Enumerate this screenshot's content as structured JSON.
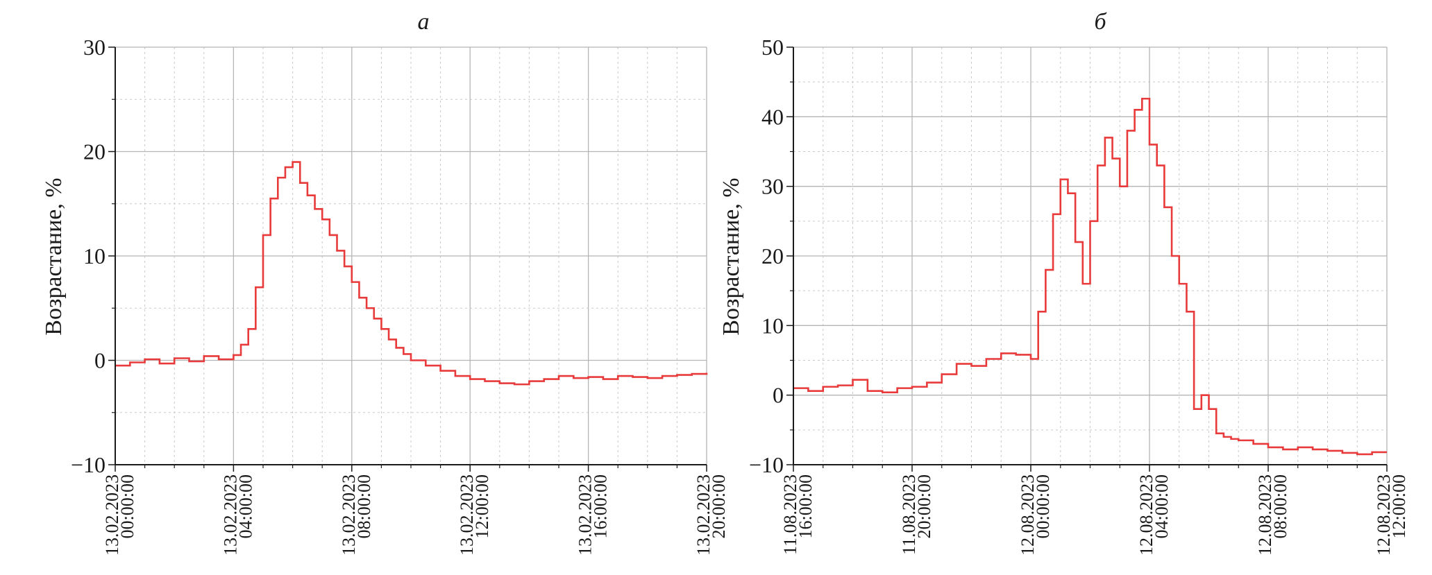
{
  "colors": {
    "series": "#e83a3a",
    "grid_major": "#b5b5b5",
    "grid_minor": "#c9c9c9",
    "axis": "#1a1a1a"
  },
  "chart_data": [
    {
      "type": "line",
      "step": true,
      "title": "а",
      "ylabel": "Возрастание, %",
      "xlabel": "",
      "ylim": [
        -10,
        30
      ],
      "yticks": [
        "30",
        "20",
        "10",
        "0",
        "−10"
      ],
      "ytick_values": [
        30,
        20,
        10,
        0,
        -10
      ],
      "xticks": [
        {
          "date": "13.02.2023",
          "time": "00:00:00"
        },
        {
          "date": "13.02.2023",
          "time": "04:00:00"
        },
        {
          "date": "13.02.2023",
          "time": "08:00:00"
        },
        {
          "date": "13.02.2023",
          "time": "12:00:00"
        },
        {
          "date": "13.02.2023",
          "time": "16:00:00"
        },
        {
          "date": "13.02.2023",
          "time": "20:00:00"
        }
      ],
      "x_unit": "hours",
      "xlim": [
        0,
        20
      ],
      "grid": true,
      "series": [
        {
          "x": [
            0,
            0.5,
            1,
            1.5,
            2,
            2.5,
            3,
            3.5,
            4,
            4.25,
            4.5,
            4.75,
            5,
            5.25,
            5.5,
            5.75,
            6,
            6.25,
            6.5,
            6.75,
            7,
            7.25,
            7.5,
            7.75,
            8,
            8.25,
            8.5,
            8.75,
            9,
            9.25,
            9.5,
            9.75,
            10,
            10.5,
            11,
            11.5,
            12,
            12.5,
            13,
            13.5,
            14,
            14.5,
            15,
            15.5,
            16,
            16.5,
            17,
            17.5,
            18,
            18.5,
            19,
            19.5,
            20
          ],
          "y": [
            -0.5,
            -0.2,
            0.1,
            -0.3,
            0.2,
            -0.1,
            0.4,
            0.1,
            0.5,
            1.5,
            3,
            7,
            12,
            15.5,
            17.5,
            18.5,
            19,
            17,
            15.8,
            14.5,
            13.5,
            12,
            10.5,
            9,
            7.5,
            6,
            5,
            4,
            3,
            2,
            1.2,
            0.6,
            0,
            -0.5,
            -1,
            -1.5,
            -1.8,
            -2,
            -2.2,
            -2.3,
            -2,
            -1.8,
            -1.5,
            -1.7,
            -1.6,
            -1.8,
            -1.5,
            -1.6,
            -1.7,
            -1.5,
            -1.4,
            -1.3,
            -1.2
          ]
        }
      ]
    },
    {
      "type": "line",
      "step": true,
      "title": "б",
      "ylabel": "Возрастание, %",
      "xlabel": "",
      "ylim": [
        -10,
        50
      ],
      "yticks": [
        "50",
        "40",
        "30",
        "20",
        "10",
        "0",
        "−10"
      ],
      "ytick_values": [
        50,
        40,
        30,
        20,
        10,
        0,
        -10
      ],
      "xticks": [
        {
          "date": "11.08.2023",
          "time": "16:00:00"
        },
        {
          "date": "11.08.2023",
          "time": "20:00:00"
        },
        {
          "date": "12.08.2023",
          "time": "00:00:00"
        },
        {
          "date": "12.08.2023",
          "time": "04:00:00"
        },
        {
          "date": "12.08.2023",
          "time": "08:00:00"
        },
        {
          "date": "12.08.2023",
          "time": "12:00:00"
        }
      ],
      "x_unit": "hours",
      "xlim": [
        0,
        20
      ],
      "grid": true,
      "series": [
        {
          "x": [
            0,
            0.5,
            1,
            1.5,
            2,
            2.5,
            3,
            3.5,
            4,
            4.5,
            5,
            5.5,
            6,
            6.5,
            7,
            7.5,
            8,
            8.25,
            8.5,
            8.75,
            9,
            9.25,
            9.5,
            9.75,
            10,
            10.25,
            10.5,
            10.75,
            11,
            11.25,
            11.5,
            11.75,
            12,
            12.25,
            12.5,
            12.75,
            13,
            13.25,
            13.5,
            13.75,
            14,
            14.25,
            14.5,
            14.75,
            15,
            15.5,
            16,
            16.5,
            17,
            17.5,
            18,
            18.5,
            19,
            19.5,
            20
          ],
          "y": [
            1,
            0.6,
            1.2,
            1.4,
            2.2,
            0.6,
            0.4,
            1,
            1.2,
            1.8,
            3,
            4.5,
            4.2,
            5.2,
            6,
            5.8,
            5.2,
            12,
            18,
            26,
            31,
            29,
            22,
            16,
            25,
            33,
            37,
            34,
            30,
            38,
            41,
            42.6,
            36,
            33,
            27,
            20,
            16,
            12,
            -2,
            0,
            -2,
            -5.5,
            -6,
            -6.3,
            -6.5,
            -7,
            -7.5,
            -7.8,
            -7.5,
            -7.8,
            -8,
            -8.3,
            -8.5,
            -8.2,
            -8.2
          ]
        }
      ]
    }
  ]
}
